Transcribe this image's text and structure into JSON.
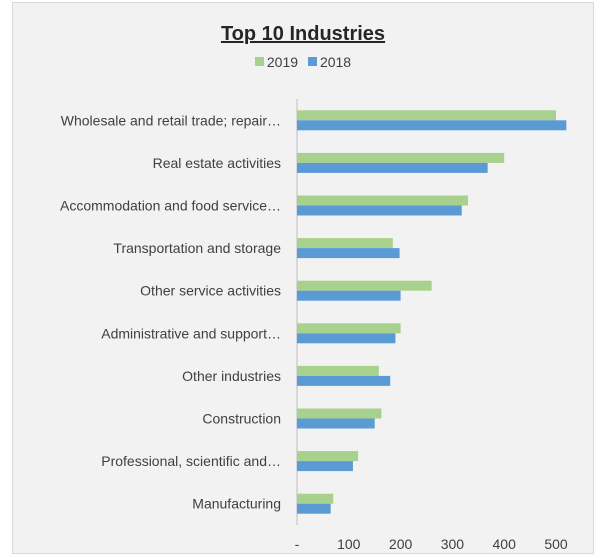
{
  "chart_data": {
    "type": "bar",
    "orientation": "horizontal",
    "title": "Top 10 Industries",
    "categories": [
      "Wholesale and retail trade; repair…",
      "Real estate activities",
      "Accommodation and food service…",
      "Transportation and storage",
      "Other service activities",
      "Administrative and support…",
      "Other industries",
      "Construction",
      "Professional, scientific and…",
      "Manufacturing"
    ],
    "series": [
      {
        "name": "2019",
        "color": "#a9d18e",
        "values": [
          500,
          400,
          330,
          185,
          260,
          200,
          158,
          163,
          118,
          70
        ]
      },
      {
        "name": "2018",
        "color": "#5b9bd5",
        "values": [
          520,
          368,
          318,
          198,
          200,
          190,
          180,
          150,
          108,
          65
        ]
      }
    ],
    "xlim": [
      0,
      550
    ],
    "xticks": [
      0,
      100,
      200,
      300,
      400,
      500
    ],
    "xtick_labels": [
      "-",
      "100",
      "200",
      "300",
      "400",
      "500"
    ],
    "legend_position": "top",
    "grid": false,
    "xlabel": "",
    "ylabel": ""
  }
}
